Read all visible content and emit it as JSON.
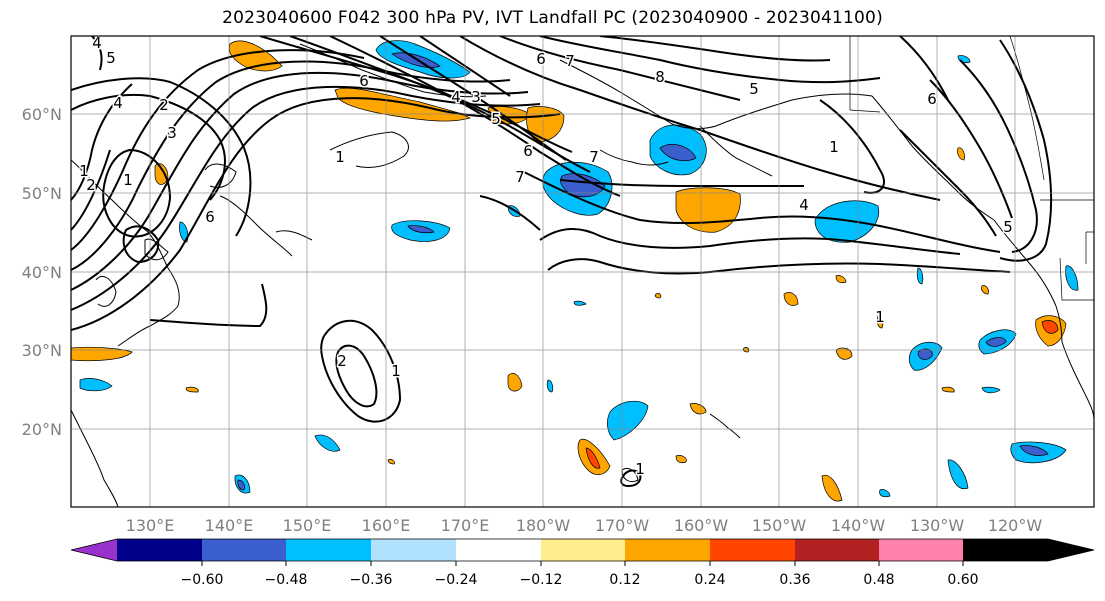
{
  "title": "2023040600 F042 300 hPa PV, IVT Landfall PC (2023040900 - 2023041100)",
  "lat_labels": [
    "60°N",
    "50°N",
    "40°N",
    "30°N",
    "20°N"
  ],
  "lon_labels": [
    "130°E",
    "140°E",
    "150°E",
    "160°E",
    "170°E",
    "180°W",
    "170°W",
    "160°W",
    "150°W",
    "140°W",
    "130°W",
    "120°W"
  ],
  "colorbar": {
    "colors": [
      "#9932cc",
      "#00008b",
      "#3a5fcd",
      "#00bfff",
      "#b0e2ff",
      "#ffffff",
      "#ffec8b",
      "#ffa500",
      "#ff4500",
      "#b22222",
      "#ff82ab"
    ],
    "tick_labels": [
      "−0.60",
      "−0.48",
      "−0.36",
      "−0.24",
      "−0.12",
      "0.12",
      "0.24",
      "0.36",
      "0.48",
      "0.60"
    ]
  },
  "contour_labels": [
    "4",
    "5",
    "4",
    "2",
    "3",
    "1",
    "2",
    "1",
    "6",
    "6",
    "1",
    "4",
    "3",
    "5",
    "6",
    "7",
    "7",
    "7",
    "6",
    "8",
    "5",
    "1",
    "4",
    "6",
    "5",
    "1",
    "2",
    "1",
    "1"
  ]
}
